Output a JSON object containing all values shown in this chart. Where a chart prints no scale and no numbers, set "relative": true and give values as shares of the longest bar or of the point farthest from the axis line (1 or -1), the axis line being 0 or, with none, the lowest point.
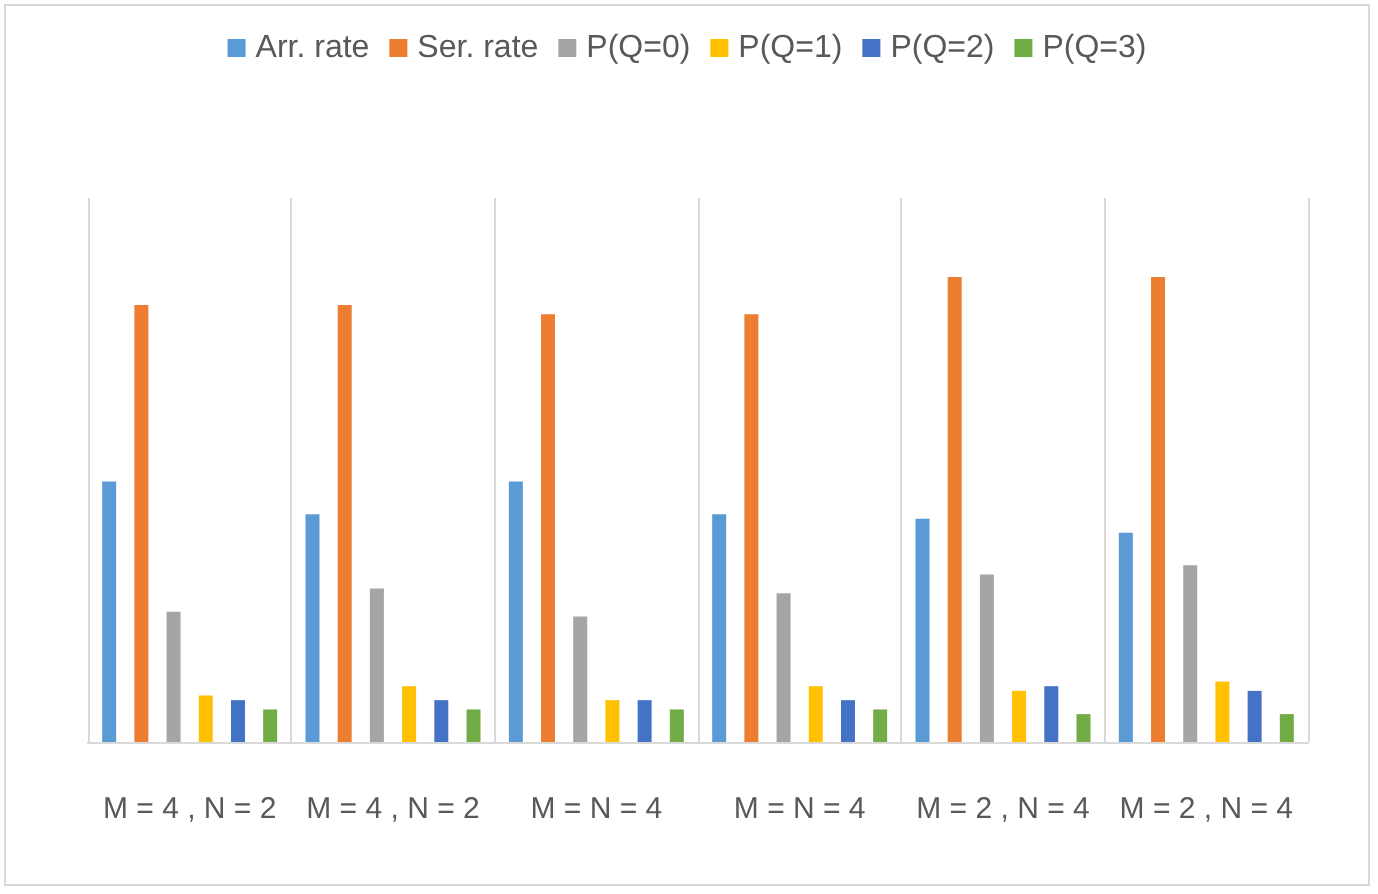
{
  "chart_data": {
    "type": "bar",
    "relative": true,
    "categories": [
      "M = 4 , N = 2",
      "M = 4 , N = 2",
      "M = N = 4",
      "M = N = 4",
      "M = 2 , N = 4",
      "M = 2 , N = 4"
    ],
    "series": [
      {
        "name": "Arr. rate",
        "color": "#5b9bd5",
        "values": [
          0.56,
          0.49,
          0.56,
          0.49,
          0.48,
          0.45
        ]
      },
      {
        "name": "Ser. rate",
        "color": "#ed7d31",
        "values": [
          0.94,
          0.94,
          0.92,
          0.92,
          1,
          1
        ]
      },
      {
        "name": "P(Q=0)",
        "color": "#a5a5a5",
        "values": [
          0.28,
          0.33,
          0.27,
          0.32,
          0.36,
          0.38
        ]
      },
      {
        "name": "P(Q=1)",
        "color": "#ffc000",
        "values": [
          0.1,
          0.12,
          0.09,
          0.12,
          0.11,
          0.13
        ]
      },
      {
        "name": "P(Q=2)",
        "color": "#4472c4",
        "values": [
          0.09,
          0.09,
          0.09,
          0.09,
          0.12,
          0.11
        ]
      },
      {
        "name": "P(Q=3)",
        "color": "#70ad47",
        "values": [
          0.07,
          0.07,
          0.07,
          0.07,
          0.06,
          0.06
        ]
      }
    ],
    "grid": "x",
    "legend": "top"
  }
}
